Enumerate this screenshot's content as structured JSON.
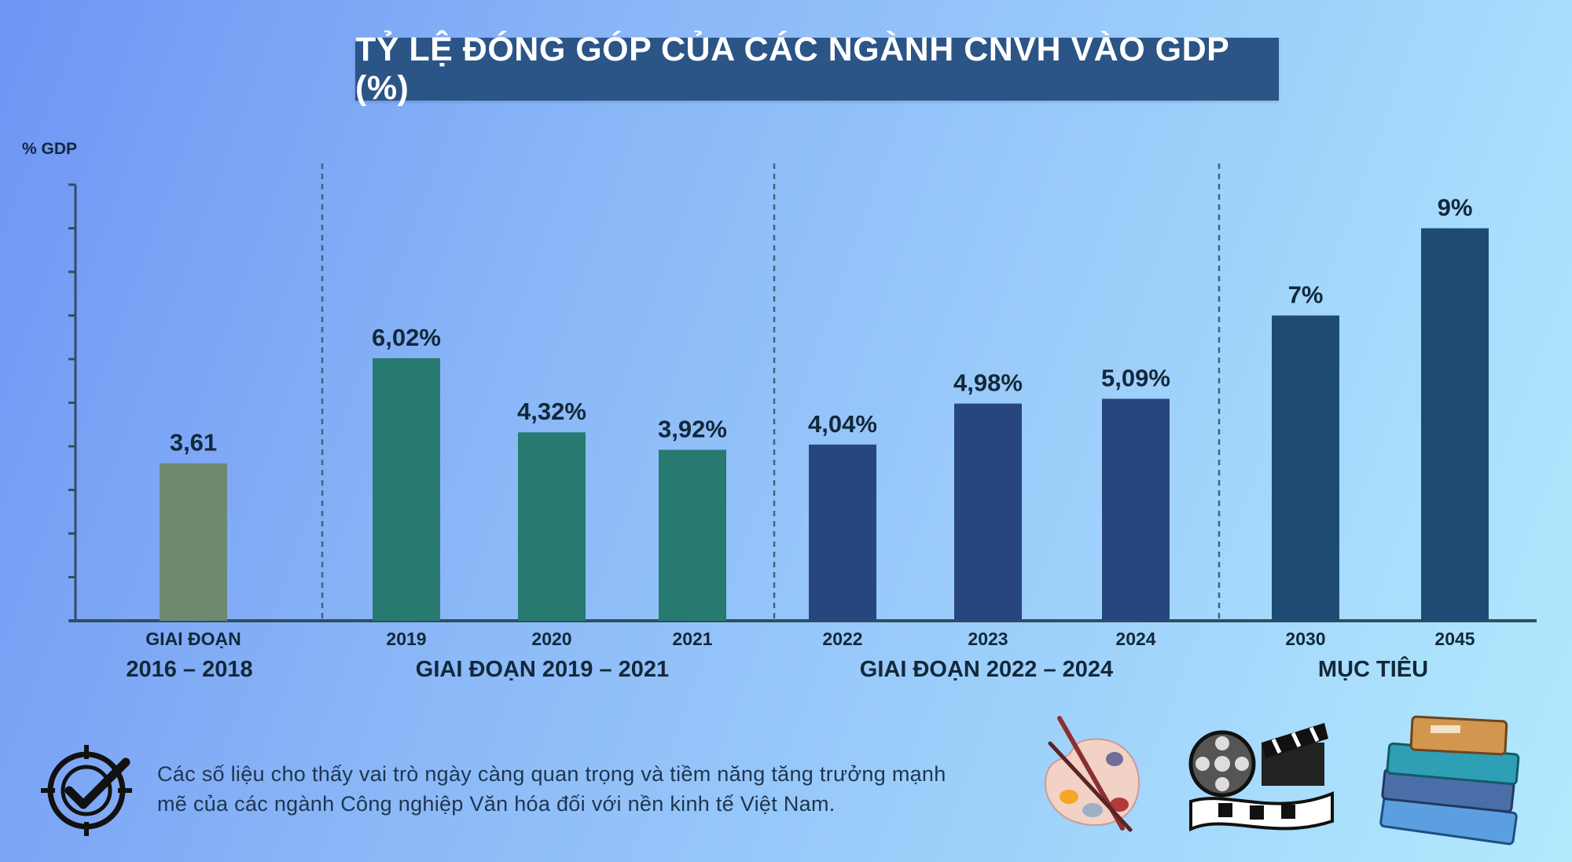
{
  "title": "TỶ LỆ ĐÓNG GÓP CỦA CÁC NGÀNH CNVH VÀO GDP (%)",
  "colors": {
    "title_bg": "#2b5487",
    "bar_period1": "#6e8a6e",
    "bar_period2": "#277a6f",
    "bar_period3": "#27467e",
    "bar_target": "#1f4a74"
  },
  "chart_data": {
    "type": "bar",
    "title": "TỶ LỆ ĐÓNG GÓP CỦA CÁC NGÀNH CNVH VÀO GDP (%)",
    "ylabel": "% GDP",
    "ylim": [
      0,
      10
    ],
    "grid": false,
    "categories": [
      "GIAI ĐOẠN",
      "2019",
      "2020",
      "2021",
      "2022",
      "2023",
      "2024",
      "2030",
      "2045"
    ],
    "values": [
      3.61,
      6.02,
      4.32,
      3.92,
      4.04,
      4.98,
      5.09,
      7,
      9
    ],
    "value_labels": [
      "3,61",
      "6,02%",
      "4,32%",
      "3,92%",
      "4,04%",
      "4,98%",
      "5,09%",
      "7%",
      "9%"
    ],
    "groups": [
      {
        "label": "2016 – 2018",
        "members": [
          "GIAI ĐOẠN"
        ]
      },
      {
        "label": "GIAI ĐOẠN 2019 – 2021",
        "members": [
          "2019",
          "2020",
          "2021"
        ]
      },
      {
        "label": "GIAI ĐOẠN 2022 – 2024",
        "members": [
          "2022",
          "2023",
          "2024"
        ]
      },
      {
        "label": "MỤC TIÊU",
        "members": [
          "2030",
          "2045"
        ]
      }
    ]
  },
  "footnote": {
    "line1": "Các số liệu cho thấy vai trò ngày càng quan trọng và tiềm năng tăng trưởng mạnh",
    "line2": "mẽ của các ngành Công nghiệp Văn hóa đối với nền kinh tế Việt Nam.",
    "icon": "target-check-icon"
  },
  "decorations": [
    "palette-icon",
    "film-reel-icon",
    "books-icon"
  ]
}
